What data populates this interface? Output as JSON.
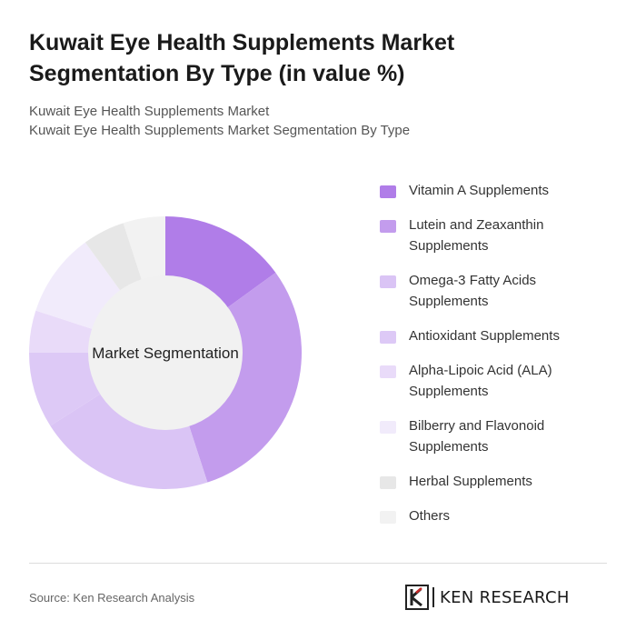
{
  "header": {
    "title": "Kuwait Eye Health Supplements Market Segmentation By Type (in value %)",
    "subtitle_line1": "Kuwait Eye Health Supplements Market",
    "subtitle_line2": "Kuwait Eye Health Supplements Market Segmentation By Type"
  },
  "chart_data": {
    "type": "pie",
    "center_label": "Market Segmentation",
    "legend_position": "right",
    "categories": [
      "Vitamin A Supplements",
      "Lutein and Zeaxanthin Supplements",
      "Omega-3 Fatty Acids Supplements",
      "Antioxidant Supplements",
      "Alpha-Lipoic Acid (ALA) Supplements",
      "Bilberry and Flavonoid Supplements",
      "Herbal Supplements",
      "Others"
    ],
    "values": [
      15,
      30,
      21,
      9,
      5,
      10,
      5,
      5
    ],
    "colors": [
      "#b07de8",
      "#c39ced",
      "#dac4f5",
      "#ddc9f6",
      "#e9dbf9",
      "#f1ebfb",
      "#e7e7e7",
      "#f2f2f2"
    ]
  },
  "footer": {
    "source": "Source: Ken Research Analysis",
    "logo_text": "KEN RESEARCH"
  }
}
